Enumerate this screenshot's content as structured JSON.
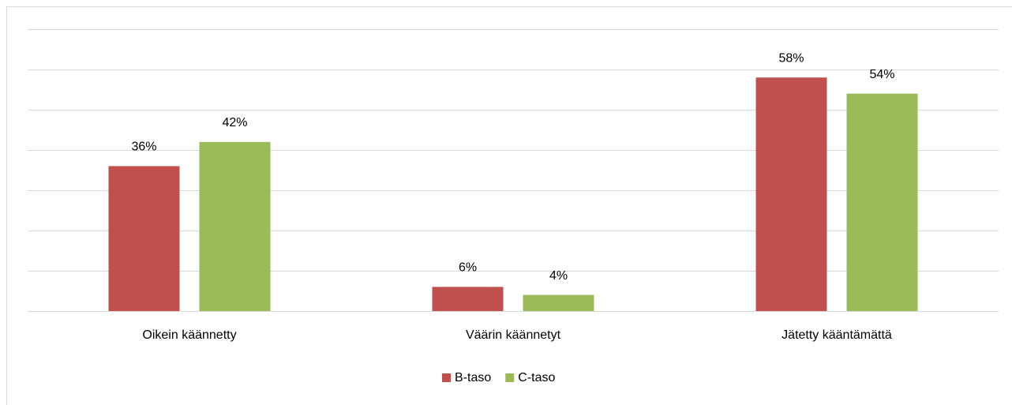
{
  "chart_data": {
    "type": "bar",
    "categories": [
      "Oikein käännetty",
      "Väärin käännetyt",
      "Jätetty kääntämättä"
    ],
    "series": [
      {
        "name": "B-taso",
        "color": "#c0504d",
        "values": [
          36,
          6,
          58
        ],
        "value_labels": [
          "36%",
          "6%",
          "58%"
        ]
      },
      {
        "name": "C-taso",
        "color": "#9bbb59",
        "values": [
          42,
          4,
          54
        ],
        "value_labels": [
          "42%",
          "4%",
          "54%"
        ]
      }
    ],
    "ylim": [
      0,
      70
    ],
    "yticks": [
      0,
      10,
      20,
      30,
      40,
      50,
      60,
      70
    ],
    "grid": true,
    "legend": "bottom"
  }
}
